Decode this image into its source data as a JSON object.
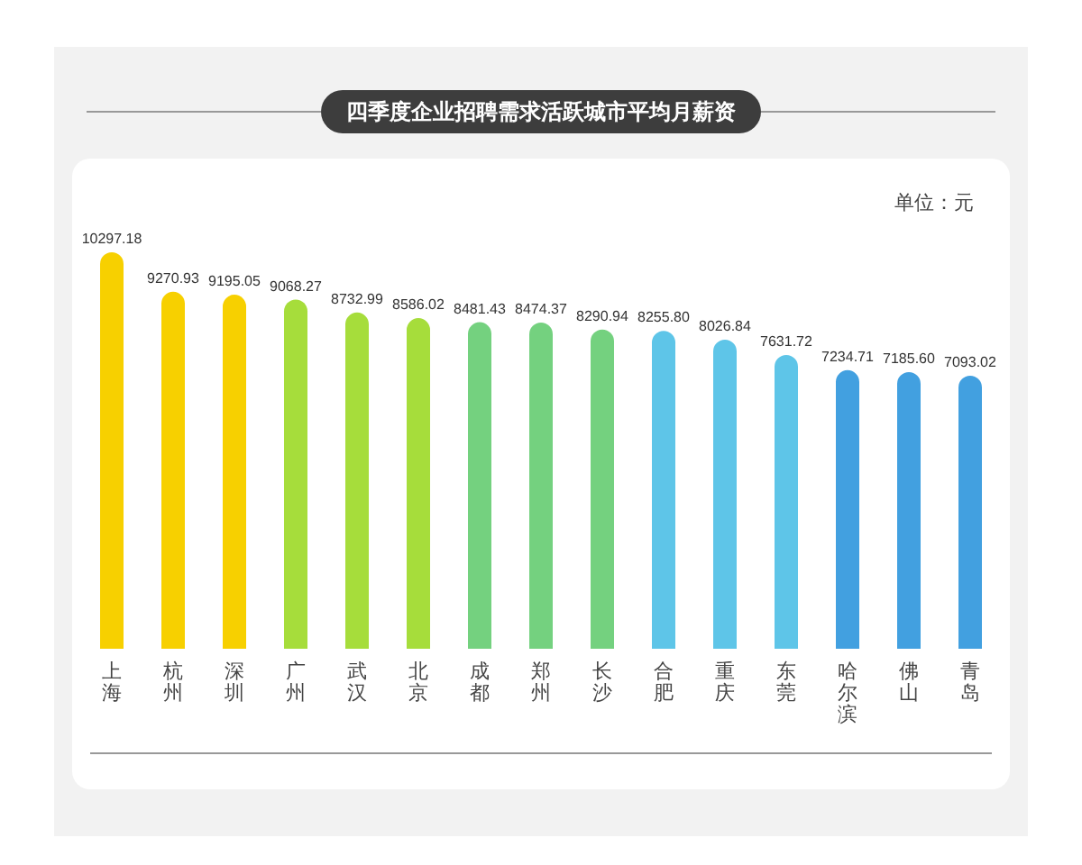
{
  "chart_data": {
    "type": "bar",
    "title": "四季度企业招聘需求活跃城市平均月薪资",
    "annotations": [
      "单位：元"
    ],
    "categories": [
      "上海",
      "杭州",
      "深圳",
      "广州",
      "武汉",
      "北京",
      "成都",
      "郑州",
      "长沙",
      "合肥",
      "重庆",
      "东莞",
      "哈尔滨",
      "佛山",
      "青岛"
    ],
    "values": [
      10297.18,
      9270.93,
      9195.05,
      9068.27,
      8732.99,
      8586.02,
      8481.43,
      8474.37,
      8290.94,
      8255.8,
      8026.84,
      7631.72,
      7234.71,
      7185.6,
      7093.02
    ],
    "value_labels": [
      "10297.18",
      "9270.93",
      "9195.05",
      "9068.27",
      "8732.99",
      "8586.02",
      "8481.43",
      "8474.37",
      "8290.94",
      "8255.80",
      "8026.84",
      "7631.72",
      "7234.71",
      "7185.60",
      "7093.02"
    ],
    "colors": [
      "#f7d000",
      "#f7d000",
      "#f7d000",
      "#a6dd3b",
      "#a6dd3b",
      "#a6dd3b",
      "#74d17f",
      "#74d17f",
      "#74d17f",
      "#5ec5e8",
      "#5ec5e8",
      "#5ec5e8",
      "#42a0e0",
      "#42a0e0",
      "#42a0e0"
    ],
    "tick_labels": "x"
  }
}
